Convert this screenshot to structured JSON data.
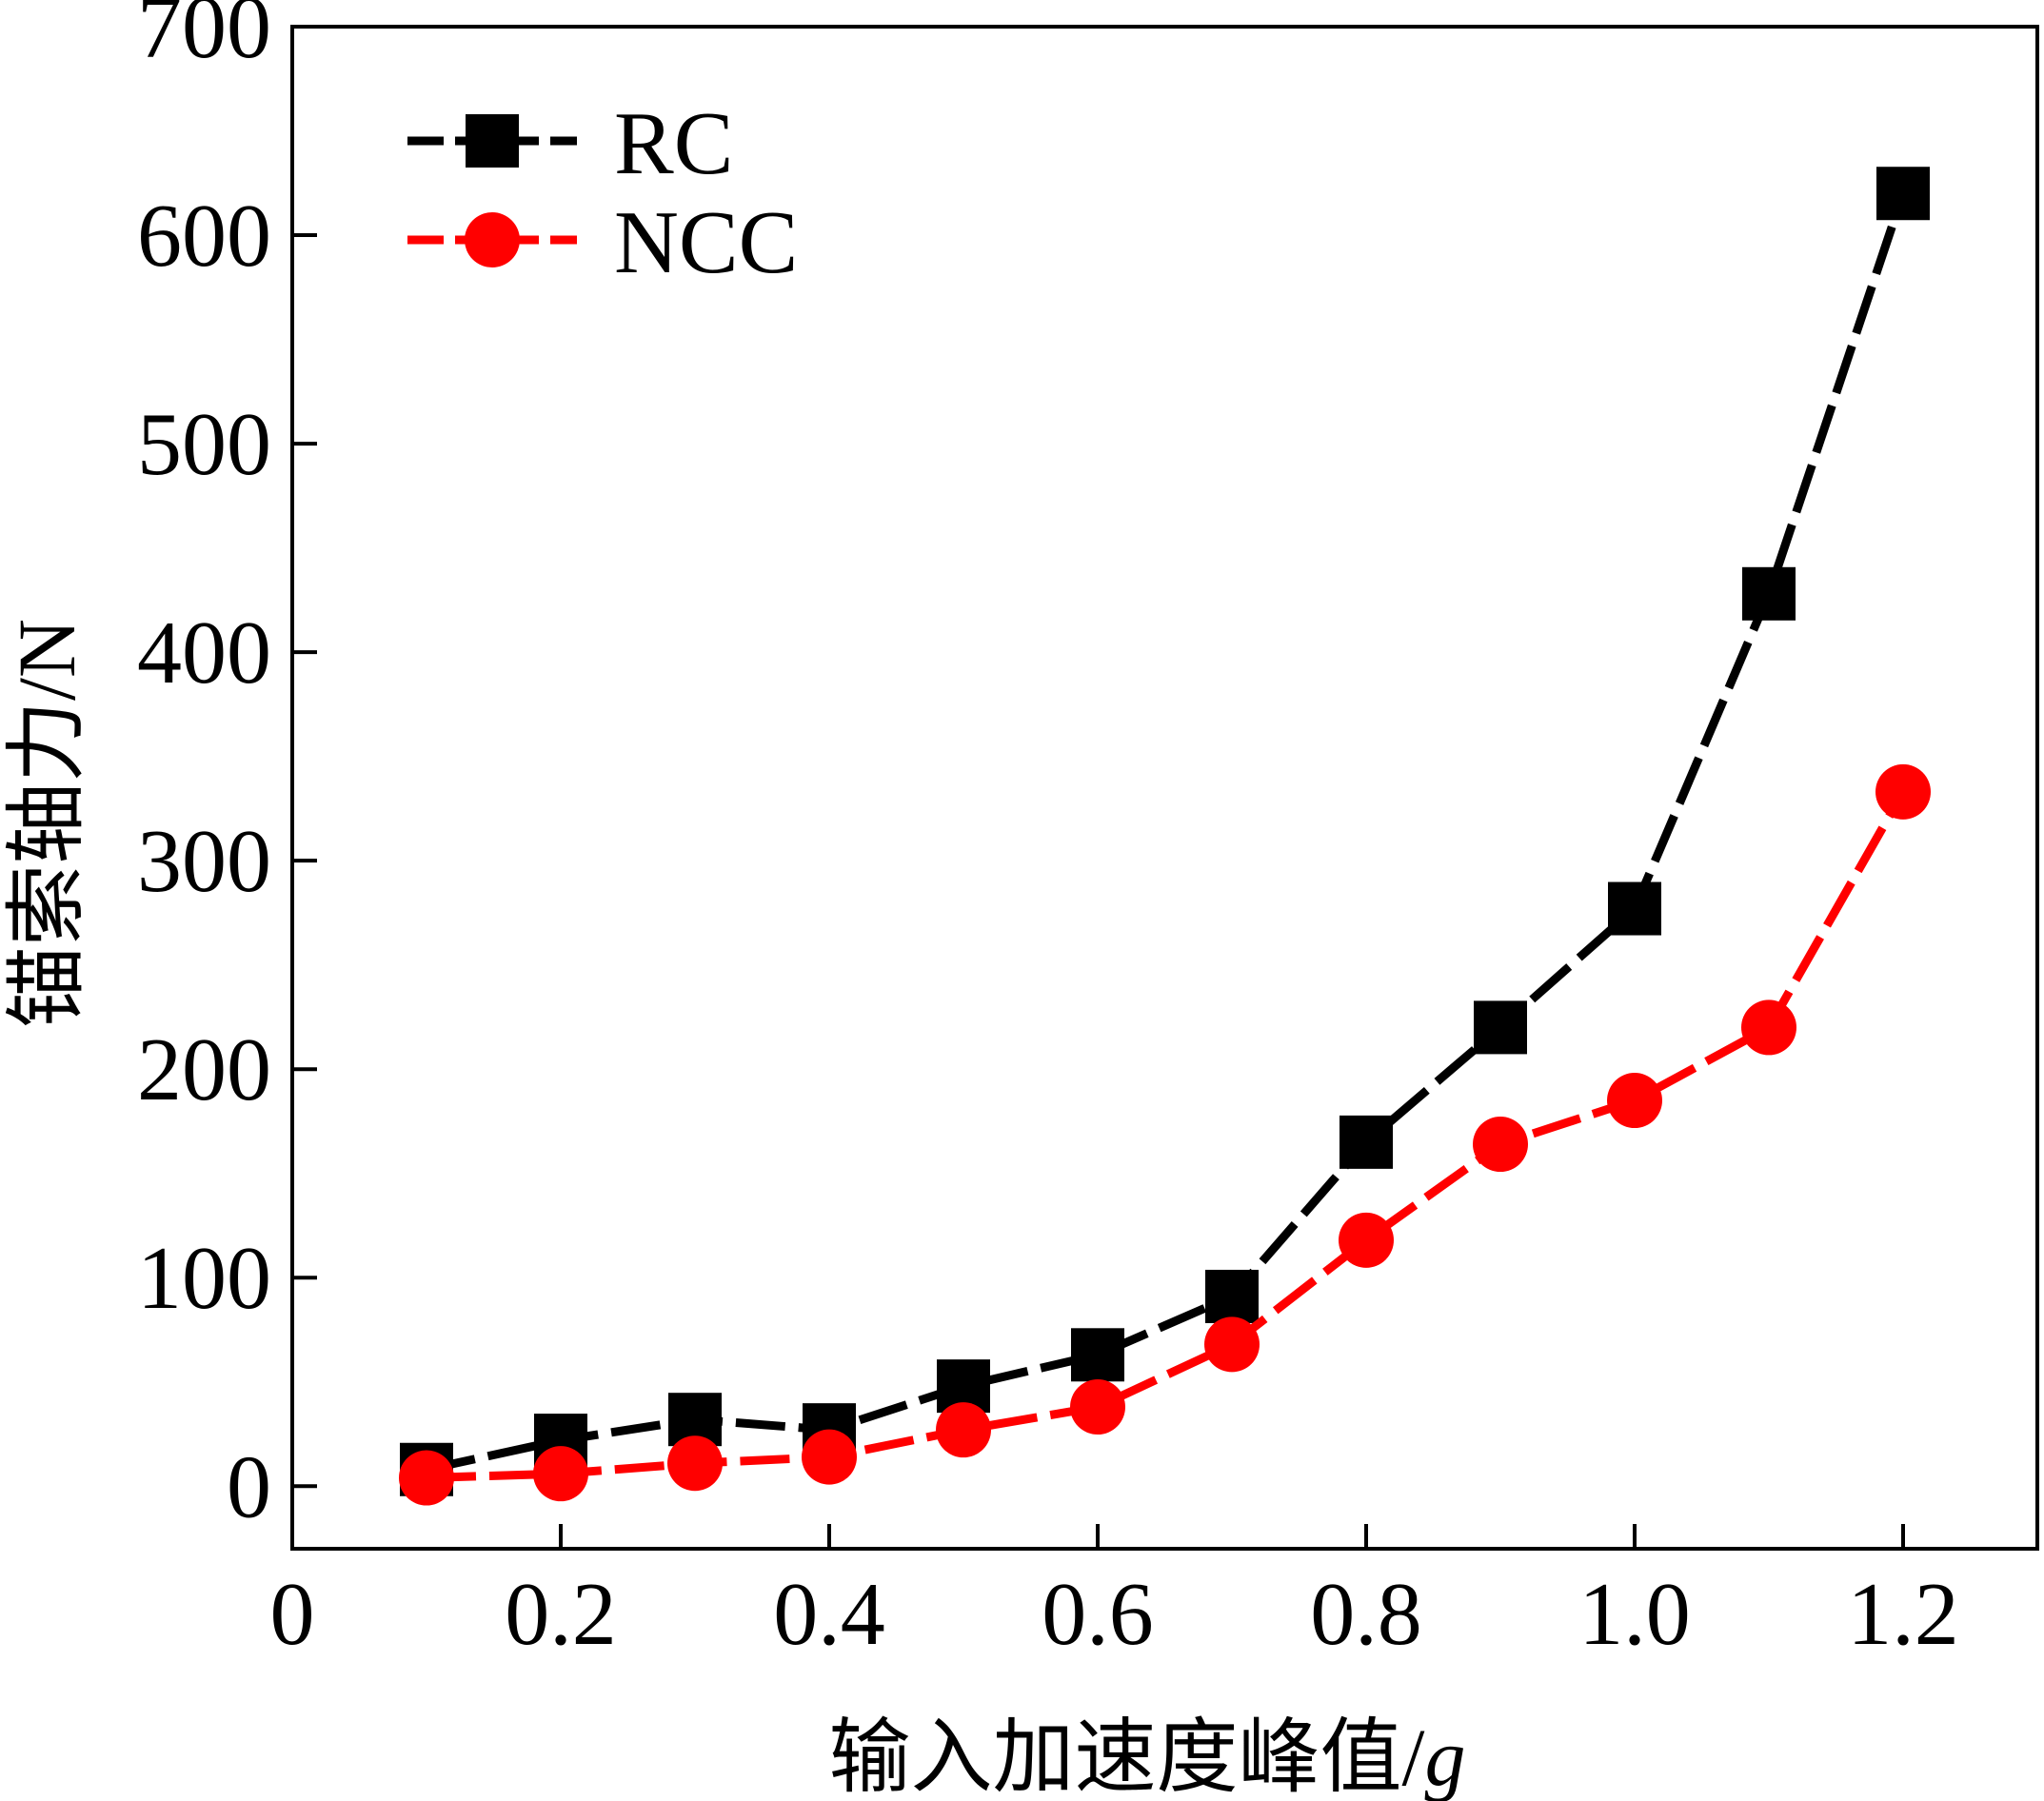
{
  "chart_data": {
    "type": "line",
    "title": "",
    "xlabel": "输入加速度峰值/",
    "xlabel_italic_suffix": "g",
    "ylabel": "锚索轴力/N",
    "xlim": [
      0,
      1.3
    ],
    "ylim": [
      -30,
      700
    ],
    "x_ticks": [
      0,
      0.2,
      0.4,
      0.6,
      0.8,
      1.0,
      1.2
    ],
    "x_tick_labels": [
      "0",
      "0.2",
      "0.4",
      "0.6",
      "0.8",
      "1.0",
      "1.2"
    ],
    "y_ticks": [
      0,
      100,
      200,
      300,
      400,
      500,
      600,
      700
    ],
    "y_tick_labels": [
      "0",
      "100",
      "200",
      "300",
      "400",
      "500",
      "600",
      "700"
    ],
    "grid": false,
    "legend_position": "top-left",
    "x": [
      0.1,
      0.2,
      0.3,
      0.4,
      0.5,
      0.6,
      0.7,
      0.8,
      0.9,
      1.0,
      1.1,
      1.2
    ],
    "series": [
      {
        "name": "RC",
        "color": "#000000",
        "marker": "square",
        "values": [
          8,
          22,
          32,
          27,
          48,
          63,
          91,
          165,
          220,
          277,
          428,
          620
        ]
      },
      {
        "name": "NCC",
        "color": "#ff0000",
        "marker": "circle",
        "values": [
          4,
          6,
          11,
          14,
          27,
          38,
          68,
          118,
          164,
          185,
          220,
          333
        ]
      }
    ]
  }
}
